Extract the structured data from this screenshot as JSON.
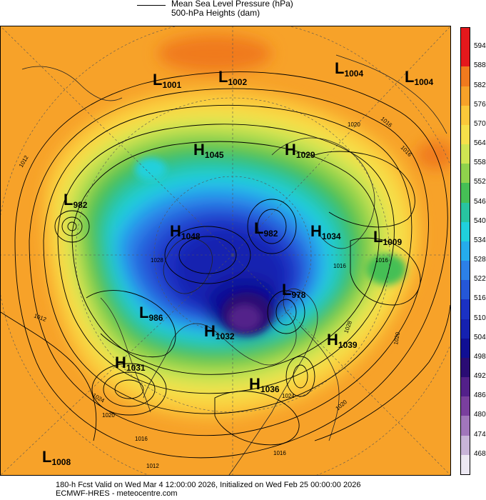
{
  "legend": {
    "line1": "Mean Sea Level Pressure (hPa)",
    "line2": "500-hPa Heights (dam)"
  },
  "colorbar": {
    "labels": [
      "594",
      "588",
      "582",
      "576",
      "570",
      "564",
      "558",
      "552",
      "546",
      "540",
      "534",
      "528",
      "522",
      "516",
      "510",
      "504",
      "498",
      "492",
      "486",
      "480",
      "474",
      "468"
    ],
    "colors": [
      "#e4181c",
      "#f07a1e",
      "#f7a229",
      "#fbc83a",
      "#f6e04a",
      "#cfe552",
      "#8fd24c",
      "#45bf55",
      "#28c4a0",
      "#20d0dc",
      "#25acec",
      "#2c80e8",
      "#2557d8",
      "#1b31c4",
      "#1521b0",
      "#100f94",
      "#2a0c74",
      "#53208a",
      "#7a3f9e",
      "#a176bb",
      "#c8b4d8",
      "#ece8f2"
    ],
    "top_color": "#e4181c"
  },
  "centers": [
    {
      "letter": "L",
      "value": "1001"
    },
    {
      "letter": "L",
      "value": "1002"
    },
    {
      "letter": "L",
      "value": "1004"
    },
    {
      "letter": "L",
      "value": "1004"
    },
    {
      "letter": "H",
      "value": "1045"
    },
    {
      "letter": "H",
      "value": "1029"
    },
    {
      "letter": "L",
      "value": "982"
    },
    {
      "letter": "H",
      "value": "1048"
    },
    {
      "letter": "L",
      "value": "982"
    },
    {
      "letter": "H",
      "value": "1034"
    },
    {
      "letter": "L",
      "value": "1009"
    },
    {
      "letter": "L",
      "value": "978"
    },
    {
      "letter": "L",
      "value": "986"
    },
    {
      "letter": "H",
      "value": "1032"
    },
    {
      "letter": "H",
      "value": "1039"
    },
    {
      "letter": "H",
      "value": "1031"
    },
    {
      "letter": "H",
      "value": "1036"
    },
    {
      "letter": "L",
      "value": "1008"
    }
  ],
  "isobar_labels": [
    "1012",
    "1012",
    "1016",
    "1016",
    "1020",
    "1020",
    "1024",
    "1024",
    "1028",
    "1028",
    "1016",
    "1020",
    "1012",
    "1016",
    "1016",
    "1016",
    "1020"
  ],
  "footer": {
    "line1": "180-h Fcst Valid on Wed Mar  4 12:00:00 2026, Initialized on Wed Feb 25 00:00:00 2026",
    "line2": "ECMWF-HRES - meteocentre.com"
  }
}
